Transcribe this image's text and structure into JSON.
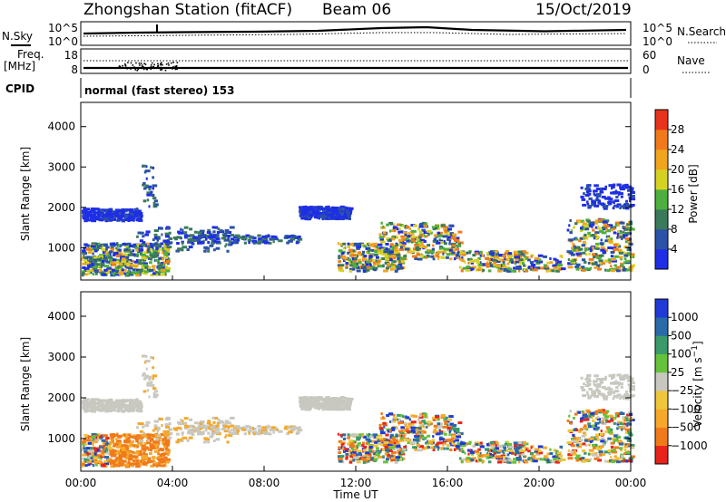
{
  "header": {
    "station": "Zhongshan Station (fitACF)",
    "beam": "Beam 06",
    "date": "15/Oct/2019"
  },
  "summary_panels": {
    "nsky_label": "N.Sky",
    "nsky_ticks": [
      "10^5",
      "10^0"
    ],
    "nsearch_label": "N.Search",
    "nsearch_ticks": [
      "10^5",
      "10^0"
    ],
    "freq_label_top": "Freq.",
    "freq_label_unit": "[MHz]",
    "freq_ticks": [
      "18",
      "8"
    ],
    "nave_label": "Nave",
    "nave_ticks": [
      "60",
      "0"
    ],
    "cpid_label": "CPID",
    "cpid_text": "normal (fast stereo) 153"
  },
  "colors": {
    "power": [
      "#1f2ee6",
      "#2a52a6",
      "#3a7a5a",
      "#4caf3e",
      "#d6d223",
      "#f0a51e",
      "#f07a1a",
      "#e8331c"
    ],
    "velocity": [
      "#e8231c",
      "#f07a1a",
      "#f5a82a",
      "#f0c63a",
      "#c8c8c0",
      "#66c23a",
      "#3a9a6a",
      "#2a6aa8",
      "#1f3ad6"
    ]
  },
  "chart_data": [
    {
      "type": "heatmap",
      "name": "Power",
      "ylabel": "Slant Range [km]",
      "yticks": [
        1000,
        2000,
        3000,
        4000
      ],
      "ylim": [
        200,
        4600
      ],
      "xlim": [
        0,
        24
      ],
      "colorbar_label": "Power [dB]",
      "colorbar_ticks": [
        4,
        8,
        12,
        16,
        20,
        24,
        28
      ],
      "colorbar_range": [
        0,
        32
      ]
    },
    {
      "type": "heatmap",
      "name": "Velocity",
      "ylabel": "Slant Range [km]",
      "yticks": [
        1000,
        2000,
        3000,
        4000
      ],
      "ylim": [
        200,
        4600
      ],
      "xlim": [
        0,
        24
      ],
      "colorbar_label": "Velocity [m s^-1]",
      "colorbar_ticks": [
        "1000",
        "500",
        "100",
        "25",
        "−25",
        "−100",
        "−500",
        "−1000"
      ],
      "xlabel": "Time UT",
      "xticks": [
        "00:00",
        "04:00",
        "08:00",
        "12:00",
        "16:00",
        "20:00",
        "00:00"
      ]
    }
  ]
}
